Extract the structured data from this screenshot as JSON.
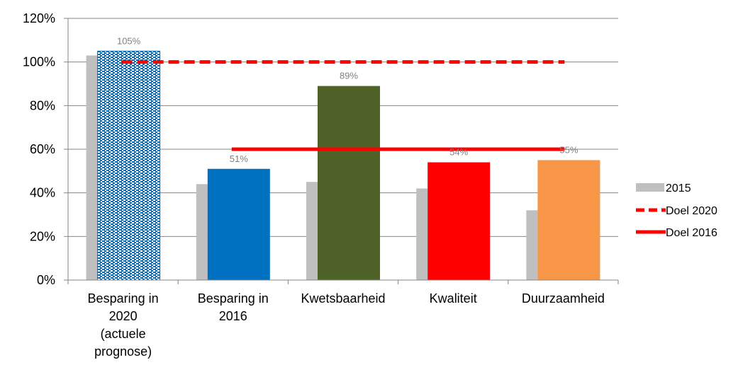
{
  "chart_data": {
    "type": "bar",
    "categories": [
      [
        "Besparing in",
        "2020",
        "(actuele",
        "prognose)"
      ],
      [
        "Besparing in",
        "2016"
      ],
      [
        "Kwetsbaarheid"
      ],
      [
        "Kwaliteit"
      ],
      [
        "Duurzaamheid"
      ]
    ],
    "series": [
      {
        "name": "2015",
        "values": [
          103,
          44,
          45,
          42,
          32
        ],
        "color": "#bfbfbf"
      },
      {
        "name": "",
        "values": [
          105,
          51,
          89,
          54,
          55
        ],
        "colors": [
          "#0070c0",
          "#0070c0",
          "#4f6228",
          "#ff0000",
          "#f79646"
        ],
        "patterns": [
          "dotted",
          "solid",
          "solid",
          "solid",
          "solid"
        ]
      }
    ],
    "data_labels": [
      "105%",
      "51%",
      "89%",
      "54%",
      "55%"
    ],
    "reference_lines": [
      {
        "name": "Doel 2020",
        "value": 100,
        "style": "dashed",
        "color": "#ff0000",
        "from_category": 0,
        "to_category": 4
      },
      {
        "name": "Doel 2016",
        "value": 60,
        "style": "solid",
        "color": "#ff0000",
        "from_category": 1,
        "to_category": 4
      }
    ],
    "y_ticks": [
      "0%",
      "20%",
      "40%",
      "60%",
      "80%",
      "100%",
      "120%"
    ],
    "ylim": [
      0,
      120
    ],
    "grid": true,
    "legend_position": "right",
    "title": "",
    "xlabel": "",
    "ylabel": ""
  }
}
